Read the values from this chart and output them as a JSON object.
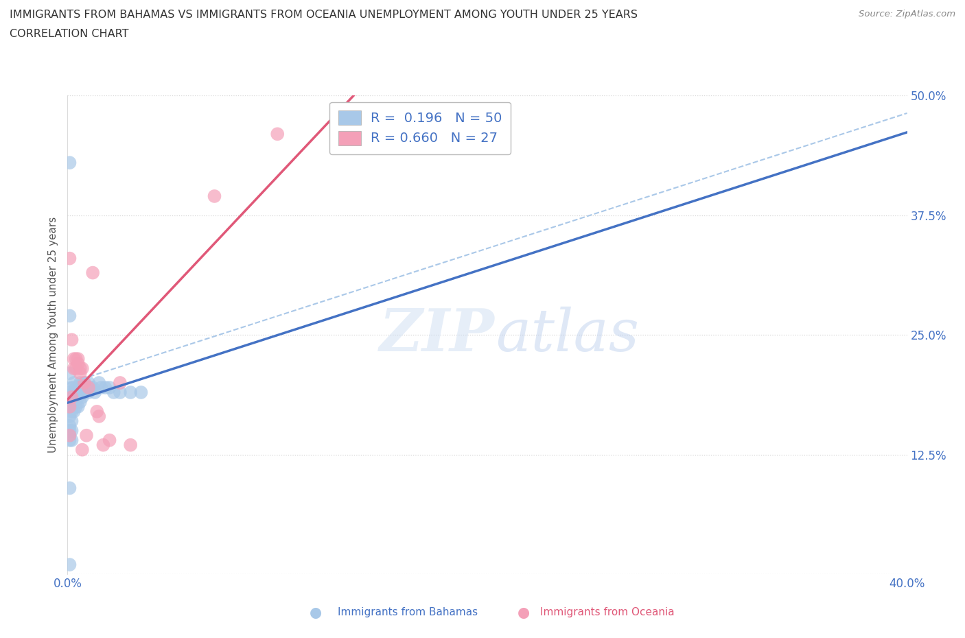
{
  "title_line1": "IMMIGRANTS FROM BAHAMAS VS IMMIGRANTS FROM OCEANIA UNEMPLOYMENT AMONG YOUTH UNDER 25 YEARS",
  "title_line2": "CORRELATION CHART",
  "source_text": "Source: ZipAtlas.com",
  "ylabel": "Unemployment Among Youth under 25 years",
  "xlim": [
    0.0,
    0.4
  ],
  "ylim": [
    0.0,
    0.5
  ],
  "xticks": [
    0.0,
    0.1,
    0.2,
    0.3,
    0.4
  ],
  "xticklabels": [
    "0.0%",
    "",
    "",
    "",
    "40.0%"
  ],
  "yticks": [
    0.0,
    0.125,
    0.25,
    0.375,
    0.5
  ],
  "yticklabels": [
    "",
    "12.5%",
    "25.0%",
    "37.5%",
    "50.0%"
  ],
  "bahamas_color": "#a8c8e8",
  "oceania_color": "#f4a0b8",
  "bahamas_line_color": "#4472c4",
  "oceania_line_color": "#e05878",
  "dashed_line_color": "#aac8e8",
  "watermark_zip_color": "#c8daf0",
  "watermark_atlas_color": "#b8ccec",
  "bahamas_R": 0.196,
  "bahamas_N": 50,
  "oceania_R": 0.66,
  "oceania_N": 27,
  "background_color": "#ffffff",
  "grid_color": "#d8d8d8",
  "tick_color": "#4472c4",
  "label_color": "#555555",
  "title_color": "#333333",
  "source_color": "#888888",
  "bahamas_x": [
    0.001,
    0.001,
    0.001,
    0.001,
    0.001,
    0.001,
    0.001,
    0.001,
    0.001,
    0.001,
    0.002,
    0.002,
    0.002,
    0.002,
    0.002,
    0.002,
    0.002,
    0.003,
    0.003,
    0.003,
    0.003,
    0.004,
    0.004,
    0.004,
    0.005,
    0.005,
    0.005,
    0.006,
    0.006,
    0.006,
    0.007,
    0.007,
    0.008,
    0.008,
    0.009,
    0.01,
    0.01,
    0.011,
    0.012,
    0.013,
    0.015,
    0.016,
    0.018,
    0.02,
    0.022,
    0.025,
    0.03,
    0.035,
    0.001,
    0.001
  ],
  "bahamas_y": [
    0.43,
    0.27,
    0.21,
    0.19,
    0.175,
    0.165,
    0.155,
    0.15,
    0.145,
    0.14,
    0.195,
    0.185,
    0.18,
    0.17,
    0.16,
    0.15,
    0.14,
    0.2,
    0.19,
    0.18,
    0.17,
    0.195,
    0.185,
    0.175,
    0.195,
    0.185,
    0.175,
    0.2,
    0.19,
    0.18,
    0.195,
    0.185,
    0.2,
    0.19,
    0.195,
    0.2,
    0.19,
    0.195,
    0.195,
    0.19,
    0.2,
    0.195,
    0.195,
    0.195,
    0.19,
    0.19,
    0.19,
    0.19,
    0.09,
    0.01
  ],
  "oceania_x": [
    0.001,
    0.001,
    0.001,
    0.002,
    0.002,
    0.003,
    0.003,
    0.004,
    0.004,
    0.005,
    0.005,
    0.006,
    0.006,
    0.007,
    0.007,
    0.008,
    0.009,
    0.01,
    0.012,
    0.014,
    0.015,
    0.017,
    0.02,
    0.025,
    0.03,
    0.07,
    0.1
  ],
  "oceania_y": [
    0.33,
    0.175,
    0.145,
    0.245,
    0.185,
    0.225,
    0.215,
    0.225,
    0.215,
    0.225,
    0.22,
    0.215,
    0.21,
    0.215,
    0.13,
    0.2,
    0.145,
    0.195,
    0.315,
    0.17,
    0.165,
    0.135,
    0.14,
    0.2,
    0.135,
    0.395,
    0.46
  ]
}
